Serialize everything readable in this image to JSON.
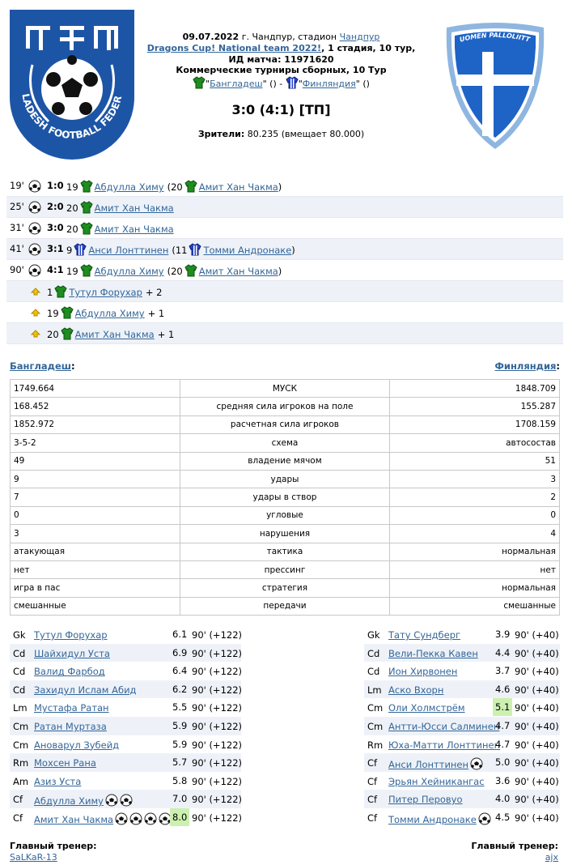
{
  "header": {
    "date": "09.07.2022",
    "place": " г. Чандпур, стадион ",
    "stadium": "Чандпур",
    "tournament": "Dragons Cup! National team 2022!",
    "stage": ", 1 стадия, 10 тур,",
    "match_id": "ИД матча: 11971620",
    "league": "Коммерческие турниры сборных, 10 Тур",
    "q1": "\"",
    "home": "Бангладеш",
    "q2": "\" () - ",
    "q3": "\"",
    "away": "Финляндия",
    "q4": "\" ()",
    "score": "3:0 (4:1) [ТП]",
    "attendance_label": "Зрители:",
    "attendance": " 80.235 (вмещает 80.000)",
    "home_logo_text": "BANGLADESH FOOTBALL FEDERATION",
    "away_logo_text": "SUOMEN PALLOLIITTO"
  },
  "events": [
    {
      "minute": "19'",
      "score": "1:0",
      "num": "19",
      "player": "Абдулла Химу",
      "assist_num": "(20",
      "assist": "Амит Хан Чакма",
      "close": ")",
      "team": "home"
    },
    {
      "minute": "25'",
      "score": "2:0",
      "num": "20",
      "player": "Амит Хан Чакма",
      "team": "home"
    },
    {
      "minute": "31'",
      "score": "3:0",
      "num": "20",
      "player": "Амит Хан Чакма",
      "team": "home"
    },
    {
      "minute": "41'",
      "score": "3:1",
      "num": "9",
      "player": "Анси Лонттинен",
      "assist_num": "(11",
      "assist": "Томми Андронаке",
      "close": ")",
      "team": "away"
    },
    {
      "minute": "90'",
      "score": "4:1",
      "num": "19",
      "player": "Абдулла Химу",
      "assist_num": "(20",
      "assist": "Амит Хан Чакма",
      "close": ")",
      "team": "home"
    }
  ],
  "bonuses": [
    {
      "num": "1",
      "player": "Тутул Форухар",
      "extra": "+ 2"
    },
    {
      "num": "19",
      "player": "Абдулла Химу",
      "extra": "+ 1"
    },
    {
      "num": "20",
      "player": "Амит Хан Чакма",
      "extra": "+ 1"
    }
  ],
  "teams": {
    "home": "Бангладеш",
    "away": "Финляндия",
    "colon": ":"
  },
  "stats": [
    [
      "1749.664",
      "МУСК",
      "1848.709"
    ],
    [
      "168.452",
      "средняя сила игроков на поле",
      "155.287"
    ],
    [
      "1852.972",
      "расчетная сила игроков",
      "1708.159"
    ],
    [
      "3-5-2",
      "схема",
      "автосостав"
    ],
    [
      "49",
      "владение мячом",
      "51"
    ],
    [
      "9",
      "удары",
      "3"
    ],
    [
      "7",
      "удары в створ",
      "2"
    ],
    [
      "0",
      "угловые",
      "0"
    ],
    [
      "3",
      "нарушения",
      "4"
    ],
    [
      "атакующая",
      "тактика",
      "нормальная"
    ],
    [
      "нет",
      "прессинг",
      "нет"
    ],
    [
      "игра в пас",
      "стратегия",
      "нормальная"
    ],
    [
      "смешанные",
      "передачи",
      "смешанные"
    ]
  ],
  "lineups": {
    "home": [
      {
        "pos": "Gk",
        "name": "Тутул Форухар",
        "rating": "6.1",
        "minutes": "90' (+122)"
      },
      {
        "pos": "Cd",
        "name": "Шайхидул Уста",
        "rating": "6.9",
        "minutes": "90' (+122)"
      },
      {
        "pos": "Cd",
        "name": "Валид Фарбод",
        "rating": "6.4",
        "minutes": "90' (+122)"
      },
      {
        "pos": "Cd",
        "name": "Захидул Ислам Абид",
        "rating": "6.2",
        "minutes": "90' (+122)"
      },
      {
        "pos": "Lm",
        "name": "Мустафа Ратан",
        "rating": "5.5",
        "minutes": "90' (+122)"
      },
      {
        "pos": "Cm",
        "name": "Ратан Муртаза",
        "rating": "5.9",
        "minutes": "90' (+122)"
      },
      {
        "pos": "Cm",
        "name": "Ановарул Зубейд",
        "rating": "5.9",
        "minutes": "90' (+122)"
      },
      {
        "pos": "Rm",
        "name": "Мохсен Рана",
        "rating": "5.7",
        "minutes": "90' (+122)"
      },
      {
        "pos": "Am",
        "name": "Азиз Уста",
        "rating": "5.8",
        "minutes": "90' (+122)"
      },
      {
        "pos": "Cf",
        "name": "Абдулла Химу",
        "goals": 2,
        "rating": "7.0",
        "minutes": "90' (+122)"
      },
      {
        "pos": "Cf",
        "name": "Амит Хан Чакма",
        "goals": 4,
        "rating": "8.0",
        "best": true,
        "minutes": "90' (+122)"
      }
    ],
    "away": [
      {
        "pos": "Gk",
        "name": "Тату Сундберг",
        "rating": "3.9",
        "minutes": "90' (+40)"
      },
      {
        "pos": "Cd",
        "name": "Вели-Пекка Кавен",
        "rating": "4.4",
        "minutes": "90' (+40)"
      },
      {
        "pos": "Cd",
        "name": "Ион Хирвонен",
        "rating": "3.7",
        "minutes": "90' (+40)"
      },
      {
        "pos": "Lm",
        "name": "Аско Вхорн",
        "rating": "4.6",
        "minutes": "90' (+40)"
      },
      {
        "pos": "Cm",
        "name": "Оли Холмстрём",
        "rating": "5.1",
        "best": true,
        "minutes": "90' (+40)"
      },
      {
        "pos": "Cm",
        "name": "Антти-Юсси Салминен",
        "rating": "4.7",
        "minutes": "90' (+40)"
      },
      {
        "pos": "Rm",
        "name": "Юха-Матти Лонттинен",
        "rating": "4.7",
        "minutes": "90' (+40)"
      },
      {
        "pos": "Cf",
        "name": "Анси Лонттинен",
        "goals": 1,
        "rating": "5.0",
        "minutes": "90' (+40)"
      },
      {
        "pos": "Cf",
        "name": "Эрьян Хейникангас",
        "rating": "3.6",
        "minutes": "90' (+40)"
      },
      {
        "pos": "Cf",
        "name": "Питер Перовуо",
        "rating": "4.0",
        "minutes": "90' (+40)"
      },
      {
        "pos": "Cf",
        "name": "Томми Андронаке",
        "goals": 1,
        "rating": "4.5",
        "minutes": "90' (+40)"
      }
    ]
  },
  "coaches": {
    "label": "Главный тренер:",
    "home": "SaLKaR-13",
    "away": "ajx"
  }
}
